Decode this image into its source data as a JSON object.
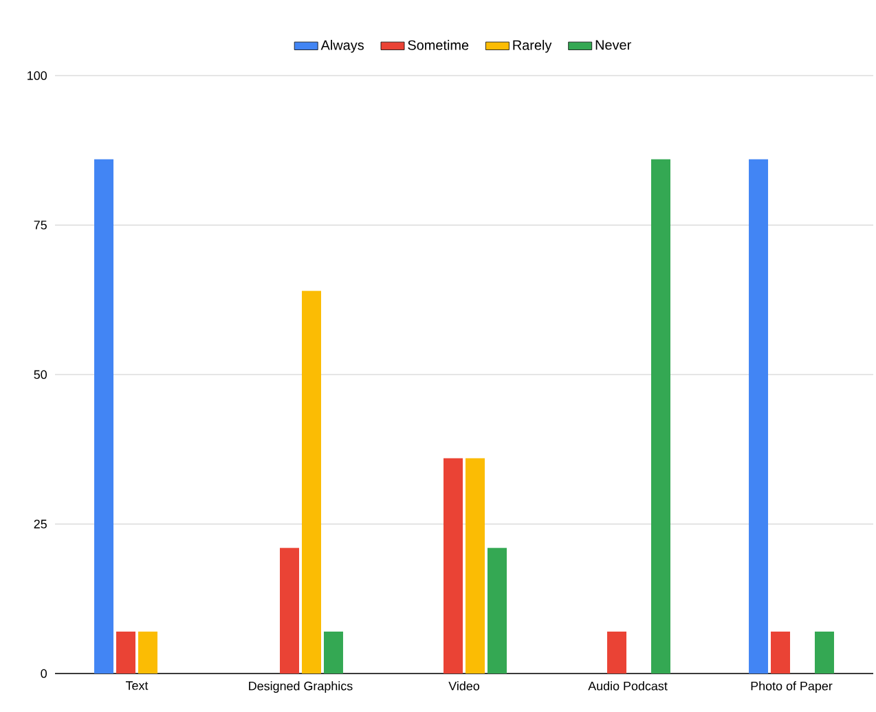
{
  "chart_data": {
    "type": "bar",
    "categories": [
      "Text",
      "Designed Graphics",
      "Video",
      "Audio Podcast",
      "Photo of Paper"
    ],
    "series": [
      {
        "name": "Always",
        "color": "#4285f4",
        "values": [
          86,
          0,
          0,
          0,
          86
        ]
      },
      {
        "name": "Sometime",
        "color": "#ea4335",
        "values": [
          7,
          21,
          36,
          7,
          7
        ]
      },
      {
        "name": "Rarely",
        "color": "#fbbc04",
        "values": [
          7,
          64,
          36,
          0,
          0
        ]
      },
      {
        "name": "Never",
        "color": "#34a853",
        "values": [
          0,
          7,
          21,
          86,
          7
        ]
      }
    ],
    "ylim": [
      0,
      100
    ],
    "yticks": [
      0,
      25,
      50,
      75,
      100
    ],
    "grid": "y",
    "legend": "top"
  }
}
